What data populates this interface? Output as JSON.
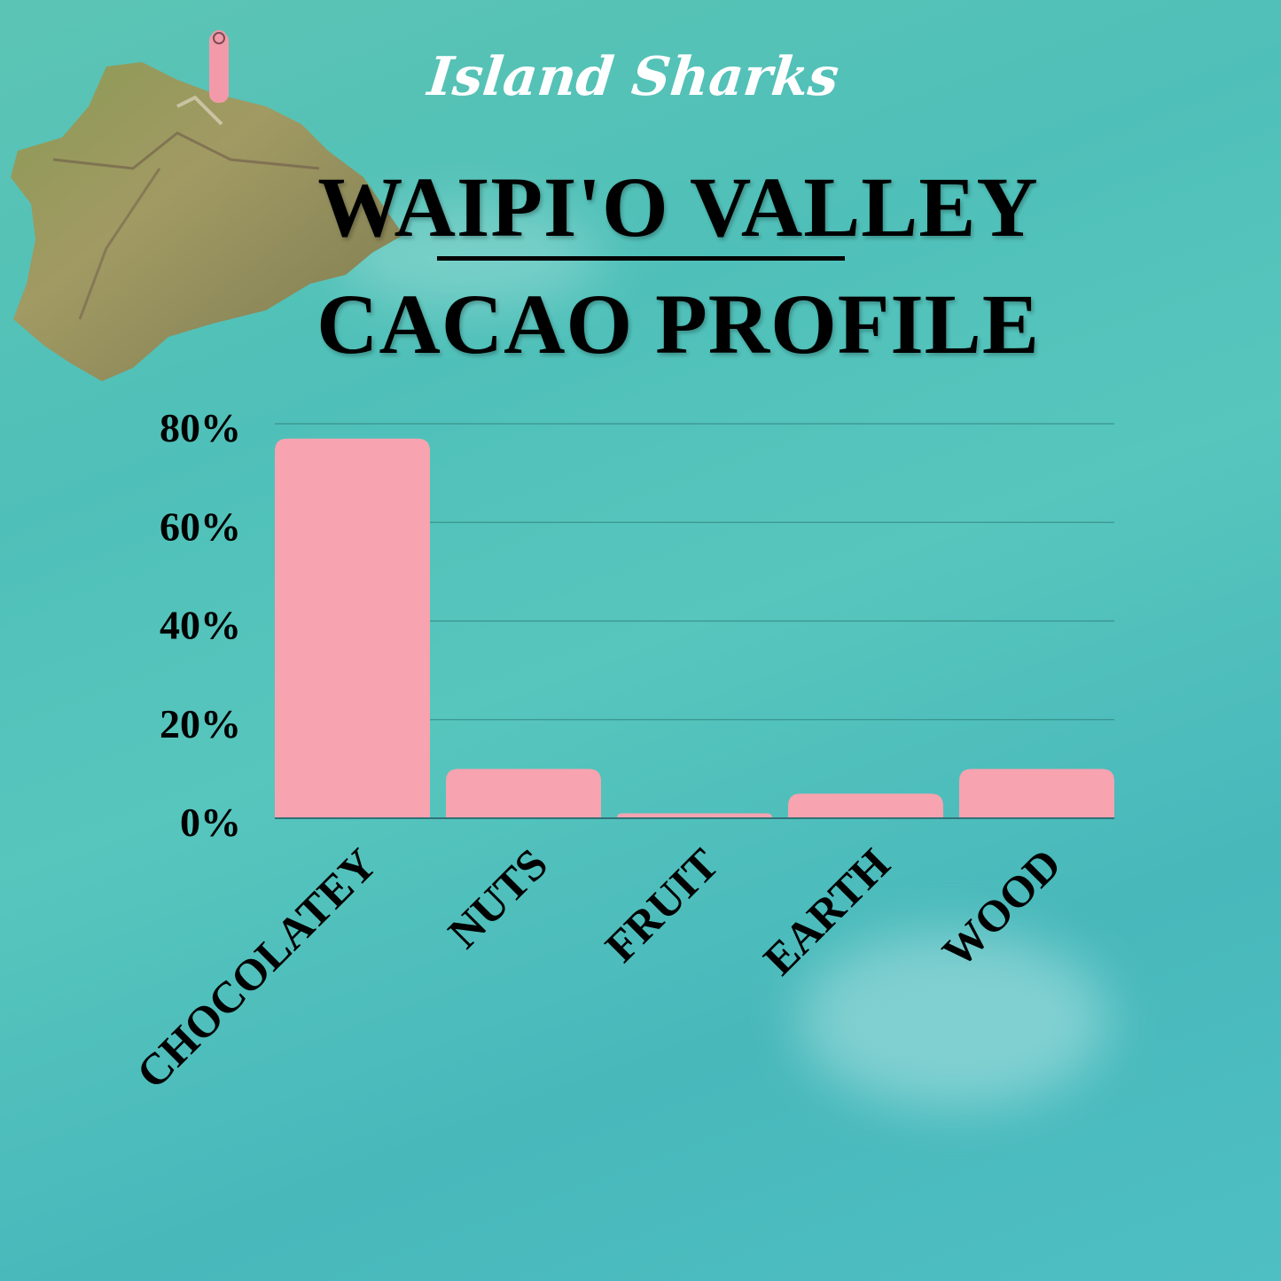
{
  "brand": "Island Sharks",
  "title_line1": "WAIPI'O VALLEY",
  "title_line2": "CACAO PROFILE",
  "colors": {
    "bar": "#f7a3b0",
    "background": "#4fc0b9",
    "text": "#000000",
    "pin": "#f29aa9"
  },
  "icons": {
    "map": "big-island-hawaii-relief-map",
    "pin": "location-pin-icon"
  },
  "chart_data": {
    "type": "bar",
    "title": "",
    "xlabel": "",
    "ylabel": "",
    "categories": [
      "CHOCOLATEY",
      "NUTS",
      "FRUIT",
      "EARTH",
      "WOOD"
    ],
    "values": [
      77,
      10,
      1,
      5,
      10
    ],
    "unit": "%",
    "ylim": [
      0,
      80
    ],
    "yticks": [
      "0%",
      "20%",
      "40%",
      "60%",
      "80%"
    ],
    "grid": true,
    "legend": "none"
  }
}
